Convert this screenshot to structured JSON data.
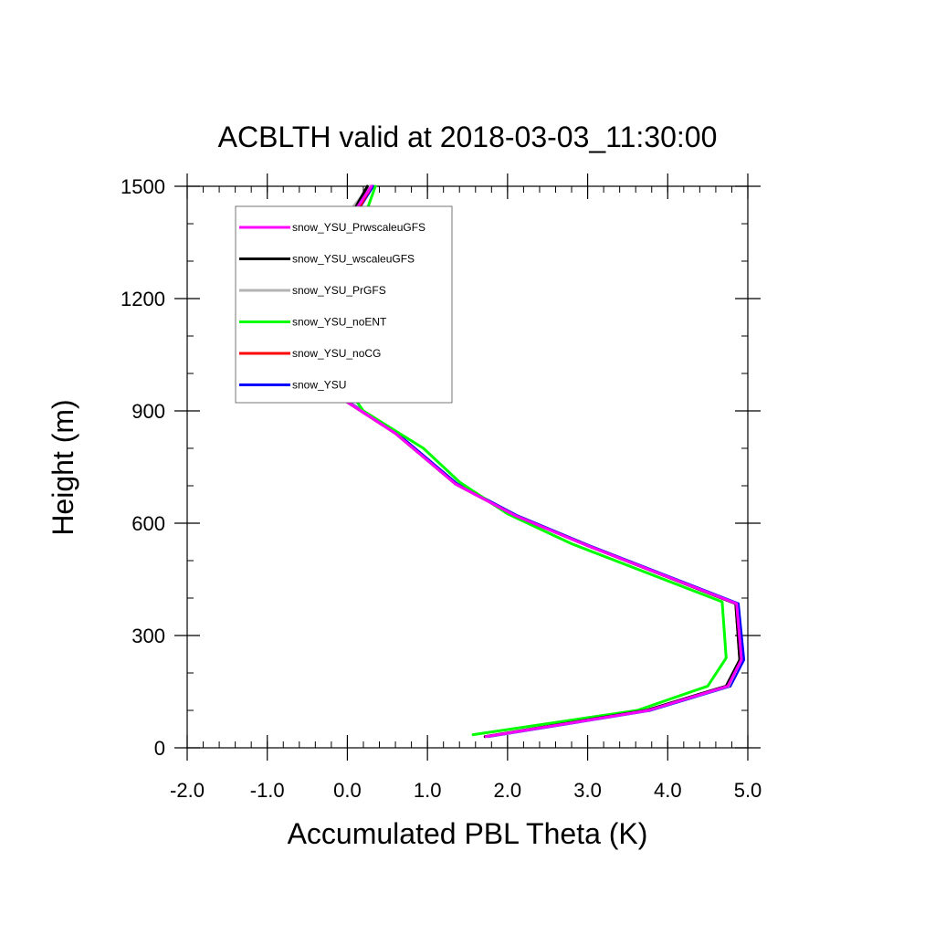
{
  "chart_data": {
    "type": "line",
    "title": "ACBLTH valid at 2018-03-03_11:30:00",
    "xlabel": "Accumulated PBL Theta (K)",
    "ylabel": "Height (m)",
    "xlim": [
      -2.0,
      5.0
    ],
    "ylim": [
      0,
      1500
    ],
    "xticks": [
      "-2.0",
      "-1.0",
      "0.0",
      "1.0",
      "2.0",
      "3.0",
      "4.0",
      "5.0"
    ],
    "yticks": [
      "0",
      "300",
      "600",
      "900",
      "1200",
      "1500"
    ],
    "legend_position": "top-left",
    "series": [
      {
        "name": "snow_YSU_PrwscaleuGFS",
        "color": "#ff00ff",
        "x": [
          1.73,
          3.76,
          4.75,
          4.92,
          4.86,
          3.0,
          2.1,
          1.35,
          0.6,
          -0.3,
          -0.55,
          -0.87,
          -0.78,
          -0.65,
          -0.2,
          0.3
        ],
        "y": [
          30,
          100,
          165,
          235,
          385,
          540,
          620,
          705,
          840,
          965,
          1010,
          1085,
          1185,
          1230,
          1340,
          1500
        ]
      },
      {
        "name": "snow_YSU_wscaleuGFS",
        "color": "#000000",
        "x": [
          1.72,
          3.73,
          4.73,
          4.9,
          4.85,
          3.0,
          2.1,
          1.35,
          0.6,
          -0.3,
          -0.55,
          -0.9,
          -0.78,
          -0.65,
          -0.3,
          0.25
        ],
        "y": [
          30,
          100,
          165,
          235,
          385,
          540,
          620,
          705,
          840,
          965,
          1010,
          1090,
          1165,
          1220,
          1290,
          1500
        ]
      },
      {
        "name": "snow_YSU_PrGFS",
        "color": "#b3b3b3",
        "x": [
          1.74,
          3.76,
          4.76,
          4.92,
          4.86,
          3.0,
          2.1,
          1.35,
          0.6,
          -0.28,
          -0.55,
          -0.85,
          -0.82,
          -0.72,
          -0.4,
          0.28
        ],
        "y": [
          30,
          100,
          165,
          235,
          385,
          540,
          620,
          705,
          840,
          965,
          1010,
          1080,
          1175,
          1215,
          1320,
          1500
        ]
      },
      {
        "name": "snow_YSU_noENT",
        "color": "#00ff00",
        "x": [
          1.57,
          3.62,
          4.5,
          4.73,
          4.68,
          2.8,
          2.0,
          1.4,
          0.95,
          0.2,
          -0.2,
          -0.4,
          -0.3,
          0.0,
          0.35
        ],
        "y": [
          35,
          100,
          165,
          240,
          390,
          545,
          625,
          710,
          800,
          900,
          1020,
          1090,
          1205,
          1290,
          1500
        ]
      },
      {
        "name": "snow_YSU_noCG",
        "color": "#ff0000",
        "x": [
          1.72,
          3.74,
          4.74,
          4.9,
          4.85,
          3.0,
          2.1,
          1.35,
          0.6,
          -0.3,
          -0.55,
          -0.85,
          -0.75,
          -0.6,
          -0.1,
          0.3
        ],
        "y": [
          30,
          100,
          165,
          235,
          385,
          540,
          620,
          705,
          840,
          965,
          1010,
          1085,
          1180,
          1230,
          1350,
          1500
        ]
      },
      {
        "name": "snow_YSU",
        "color": "#0000ff",
        "x": [
          1.76,
          3.78,
          4.78,
          4.95,
          4.88,
          3.02,
          2.12,
          1.37,
          0.62,
          -0.28,
          -0.5,
          -0.78,
          -0.72,
          -0.6,
          -0.15,
          0.32
        ],
        "y": [
          30,
          100,
          165,
          235,
          385,
          540,
          620,
          705,
          840,
          965,
          1010,
          1080,
          1190,
          1240,
          1340,
          1500
        ]
      }
    ]
  }
}
